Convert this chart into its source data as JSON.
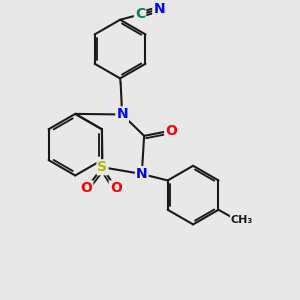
{
  "background_color": "#e8e8e8",
  "bond_color": "#1a1a1a",
  "bond_width": 1.5,
  "atom_colors": {
    "N": "#0000ff",
    "O": "#ff0000",
    "S": "#b8b800",
    "C_cyano": "#008060",
    "N_cyano": "#0000ff",
    "C_default": "#1a1a1a"
  },
  "font_size": 10
}
